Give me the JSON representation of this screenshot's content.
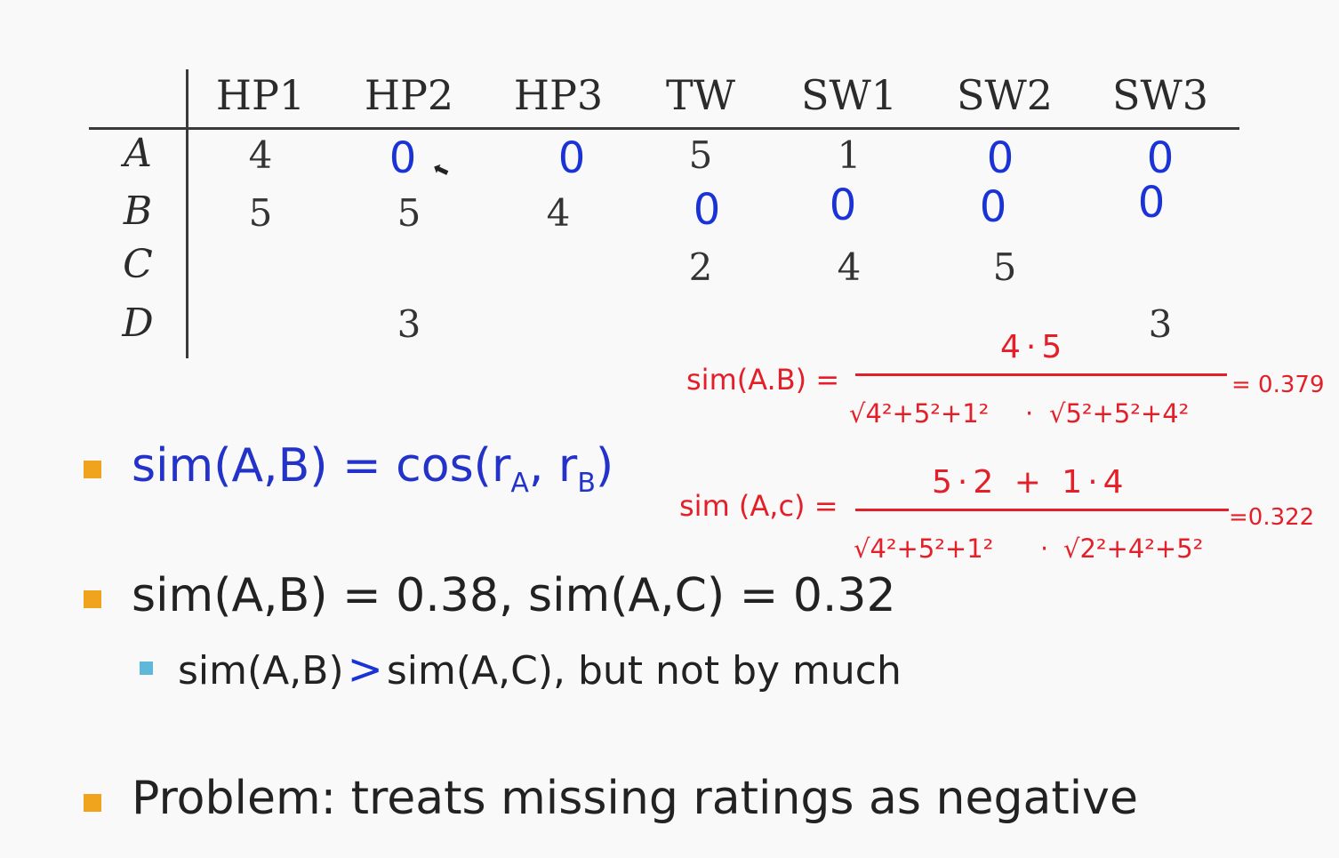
{
  "table": {
    "columns": [
      "HP1",
      "HP2",
      "HP3",
      "TW",
      "SW1",
      "SW2",
      "SW3"
    ],
    "rows": [
      {
        "label": "A",
        "cells": [
          "4",
          "",
          "",
          "5",
          "1",
          "",
          ""
        ]
      },
      {
        "label": "B",
        "cells": [
          "5",
          "5",
          "4",
          "",
          "",
          "",
          ""
        ]
      },
      {
        "label": "C",
        "cells": [
          "",
          "",
          "",
          "2",
          "4",
          "5",
          ""
        ]
      },
      {
        "label": "D",
        "cells": [
          "",
          "3",
          "",
          "",
          "",
          "",
          "3"
        ]
      }
    ],
    "handwritten_zeros": {
      "row_a": [
        "0",
        "0",
        "0",
        "0"
      ],
      "row_b": [
        "0",
        "0",
        "0",
        "0"
      ]
    }
  },
  "annotations": {
    "sim_ab": {
      "label": "sim(A.B) =",
      "numerator": "4·5",
      "denominator_left": "√4²+5²+1²",
      "dot": "·",
      "denominator_right": "√5²+5²+4²",
      "result": "= 0.379"
    },
    "sim_ac": {
      "label": "sim (A,c) =",
      "numerator": "5·2 + 1·4",
      "denominator_left": "√4²+5²+1²",
      "dot": "·",
      "denominator_right": "√2²+4²+5²",
      "result": "=0.322"
    }
  },
  "bullets": {
    "b1": {
      "prefix": "sim(A,B) = cos(r",
      "sub_a": "A",
      "mid": ", r",
      "sub_b": "B",
      "suffix": ")"
    },
    "b2": "sim(A,B) = 0.38, sim(A,C) = 0.32",
    "b2_sub": {
      "left": "sim(A,B)",
      "mark": ">",
      "right": "sim(A,C), but not by much"
    },
    "b3": "Problem: treats missing ratings as negative"
  },
  "colors": {
    "bullet_main": "#f0a31c",
    "bullet_sub": "#5fb8d9",
    "blue_text": "#2332c8",
    "handwriting_blue": "#1a33d6",
    "handwriting_red": "#e3202a"
  }
}
